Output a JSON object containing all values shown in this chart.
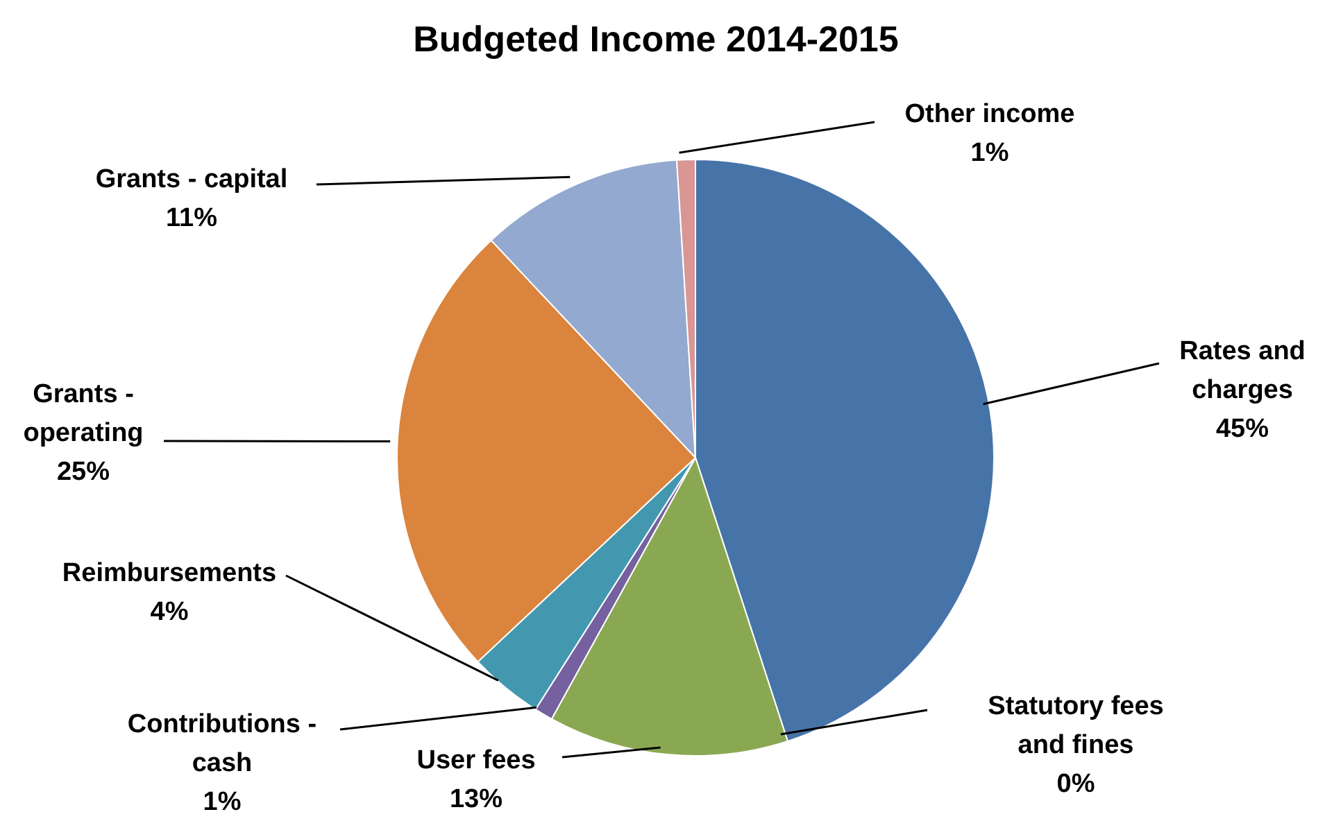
{
  "chart_data": {
    "type": "pie",
    "title": "Budgeted Income 2014-2015",
    "categories": [
      "Rates and charges",
      "Statutory fees and fines",
      "User fees",
      "Contributions - cash",
      "Reimbursements",
      "Grants - operating",
      "Grants - capital",
      "Other income"
    ],
    "values": [
      45,
      0,
      13,
      1,
      4,
      25,
      11,
      1
    ],
    "value_labels": [
      "45%",
      "0%",
      "13%",
      "1%",
      "4%",
      "25%",
      "11%",
      "1%"
    ],
    "colors": [
      "#4674a8",
      "#b94a48",
      "#8aa851",
      "#7560a0",
      "#4398b0",
      "#db843d",
      "#93a9cf",
      "#d99694"
    ]
  }
}
